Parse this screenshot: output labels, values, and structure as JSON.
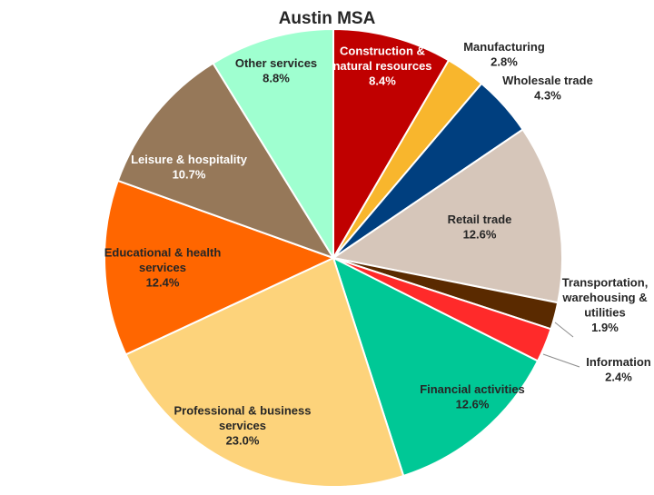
{
  "chart_data": {
    "type": "pie",
    "title": "Austin MSA",
    "slices": [
      {
        "label": "Construction & natural resources",
        "display": [
          "Construction &",
          "natural resources",
          "8.4%"
        ],
        "value": 8.4,
        "color": "#C00000",
        "text_color": "#FFFFFF"
      },
      {
        "label": "Manufacturing",
        "display": [
          "Manufacturing",
          "2.8%"
        ],
        "value": 2.8,
        "color": "#F8B62D",
        "text_color": "#262626"
      },
      {
        "label": "Wholesale trade",
        "display": [
          "Wholesale trade",
          "4.3%"
        ],
        "value": 4.3,
        "color": "#003F7F",
        "text_color": "#262626"
      },
      {
        "label": "Retail trade",
        "display": [
          "Retail trade",
          "12.6%"
        ],
        "value": 12.6,
        "color": "#D6C6BA",
        "text_color": "#262626"
      },
      {
        "label": "Transportation, warehousing & utilities",
        "display": [
          "Transportation,",
          "warehousing &",
          "utilities",
          "1.9%"
        ],
        "value": 1.9,
        "color": "#5A2A00",
        "text_color": "#262626"
      },
      {
        "label": "Information",
        "display": [
          "Information",
          "2.4%"
        ],
        "value": 2.4,
        "color": "#FF2A2A",
        "text_color": "#262626"
      },
      {
        "label": "Financial activities",
        "display": [
          "Financial activities",
          "12.6%"
        ],
        "value": 12.6,
        "color": "#00C896",
        "text_color": "#262626"
      },
      {
        "label": "Professional & business services",
        "display": [
          "Professional & business",
          "services",
          "23.0%"
        ],
        "value": 23.0,
        "color": "#FDD37B",
        "text_color": "#262626"
      },
      {
        "label": "Educational & health services",
        "display": [
          "Educational & health",
          "services",
          "12.4%"
        ],
        "value": 12.4,
        "color": "#FF6600",
        "text_color": "#262626"
      },
      {
        "label": "Leisure & hospitality",
        "display": [
          "Leisure & hospitality",
          "10.7%"
        ],
        "value": 10.7,
        "color": "#967859",
        "text_color": "#FFFFFF"
      },
      {
        "label": "Other services",
        "display": [
          "Other services",
          "8.8%"
        ],
        "value": 8.8,
        "color": "#9FFFD0",
        "text_color": "#262626"
      }
    ],
    "start_angle_deg": 0,
    "direction": "clockwise",
    "legend": "none"
  }
}
